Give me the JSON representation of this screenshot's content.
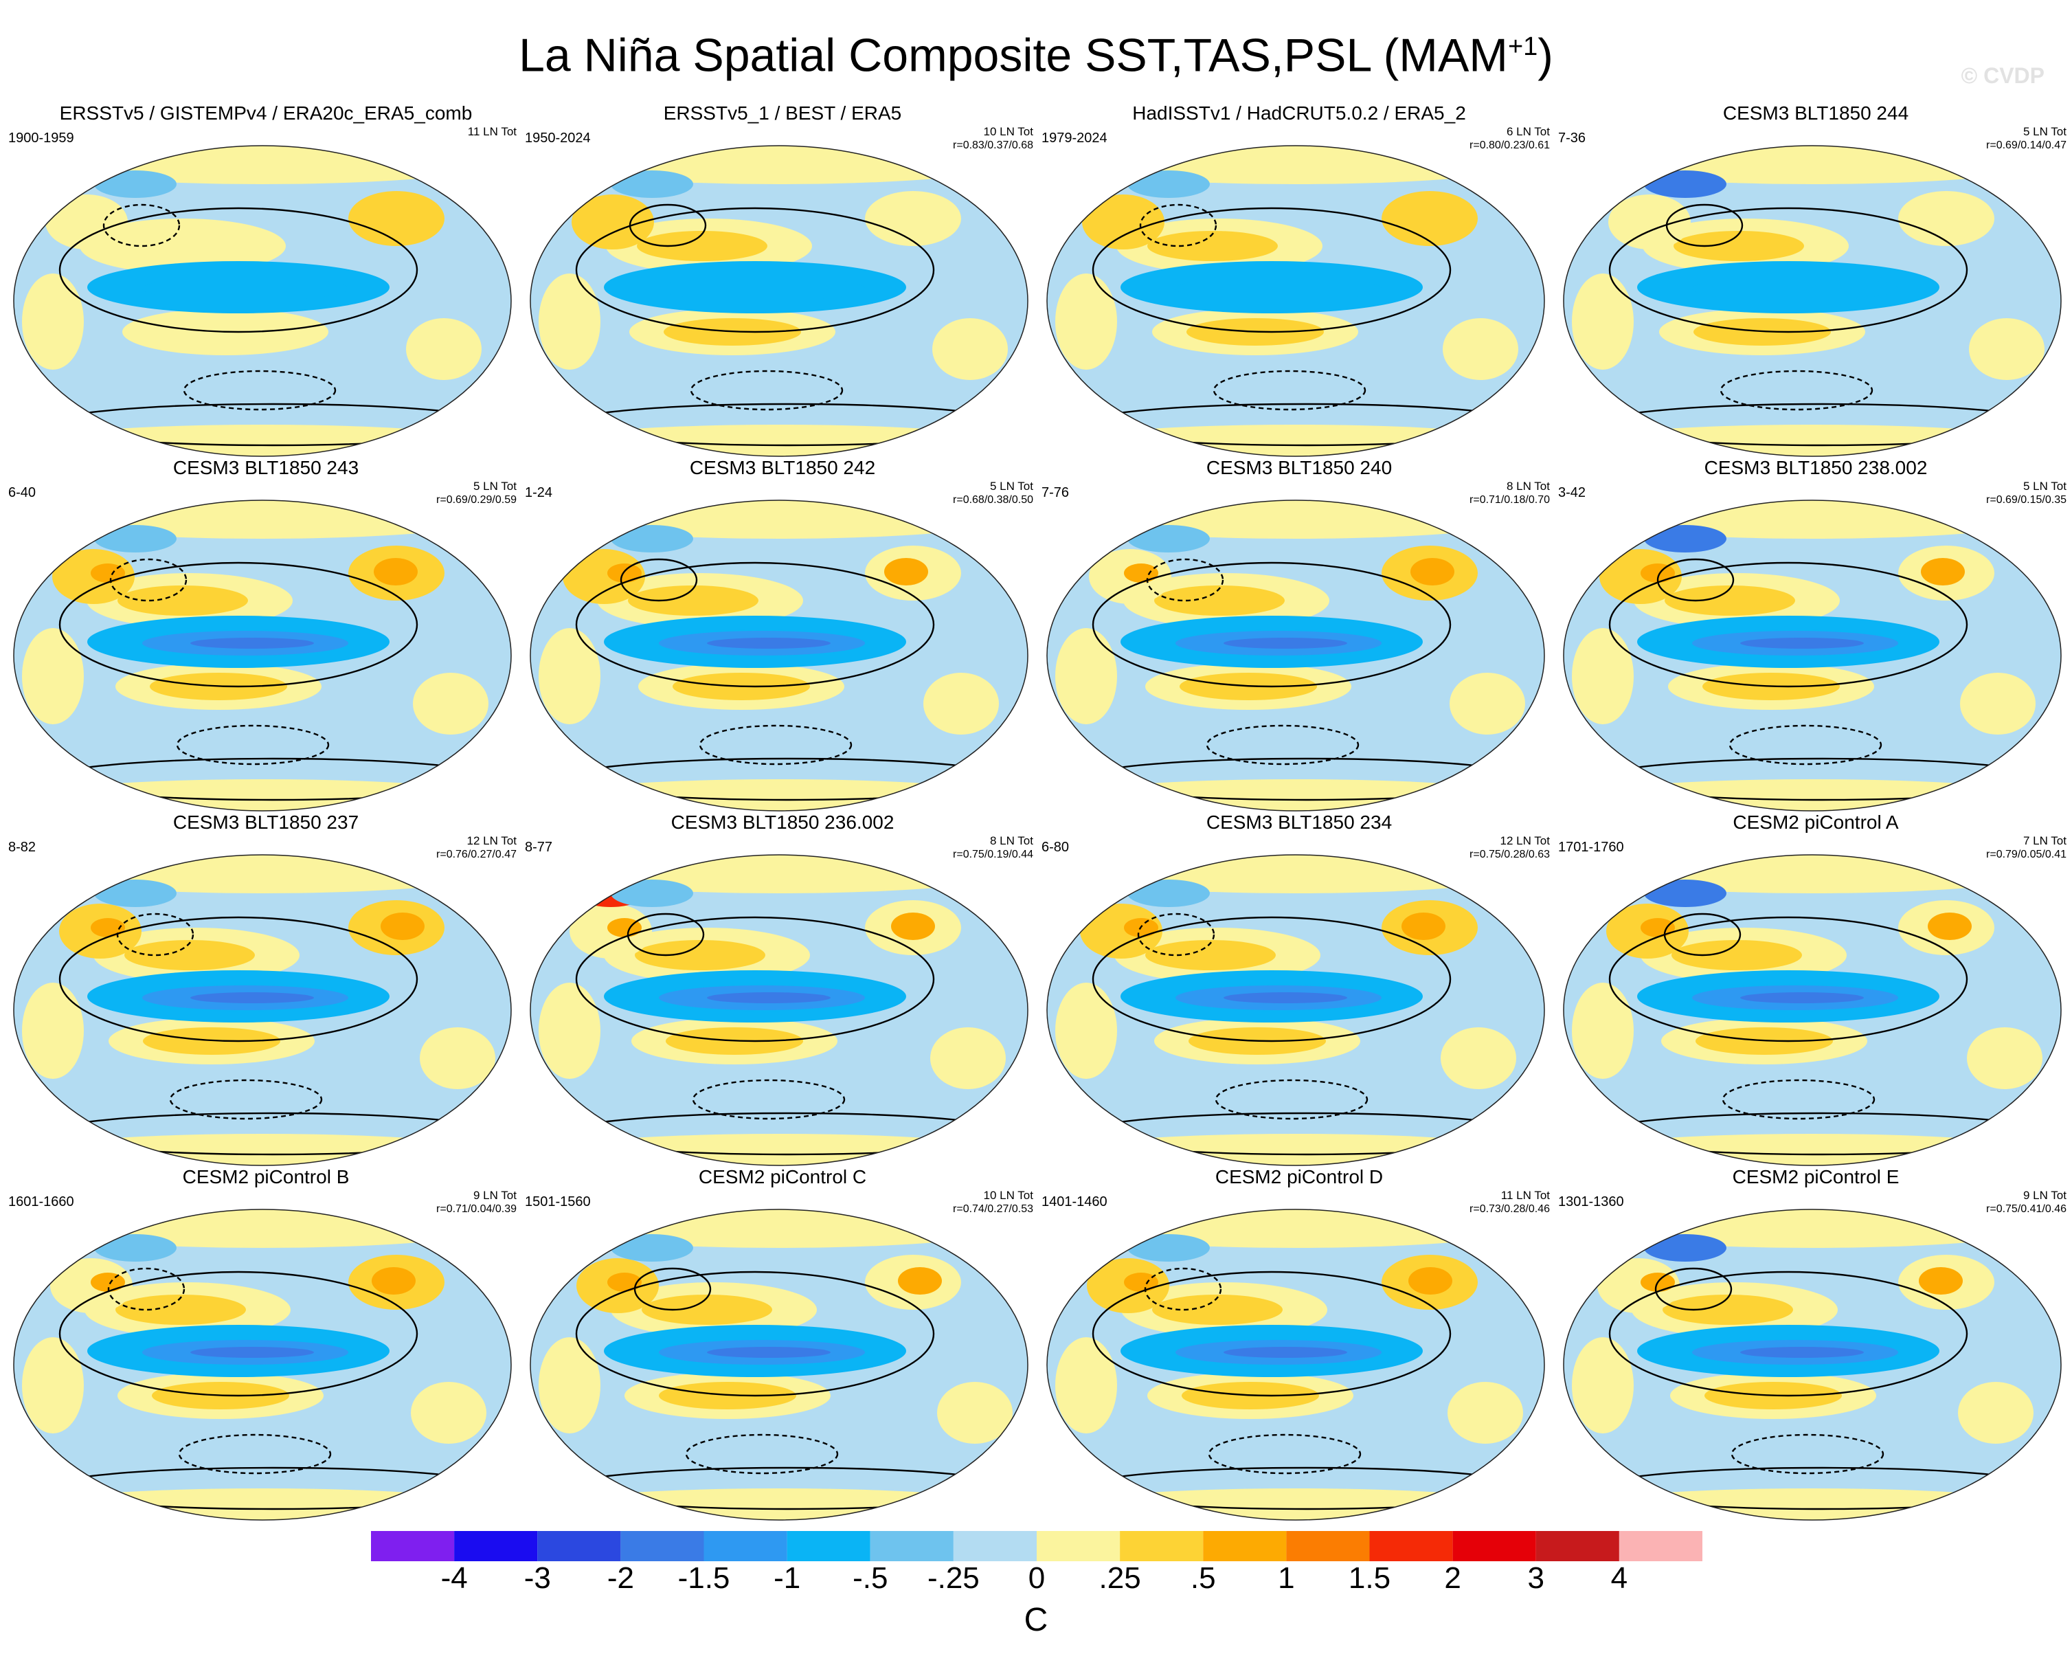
{
  "figure": {
    "title": "La Niña Spatial Composite SST,TAS,PSL (MAM",
    "title_superscript": "+1",
    "title_suffix": ")",
    "watermark": "© CVDP"
  },
  "panels": [
    {
      "title": "ERSSTv5 / GISTEMPv4 / ERA20c_ERA5_comb",
      "years": "1900-1959",
      "count": "11 LN Tot",
      "stats": ""
    },
    {
      "title": "ERSSTv5_1 / BEST / ERA5",
      "years": "1950-2024",
      "count": "10 LN Tot",
      "stats": "r=0.83/0.37/0.68"
    },
    {
      "title": "HadISSTv1 / HadCRUT5.0.2 / ERA5_2",
      "years": "1979-2024",
      "count": "6 LN Tot",
      "stats": "r=0.80/0.23/0.61"
    },
    {
      "title": "CESM3 BLT1850 244",
      "years": "7-36",
      "count": "5 LN Tot",
      "stats": "r=0.69/0.14/0.47"
    },
    {
      "title": "CESM3 BLT1850 243",
      "years": "6-40",
      "count": "5 LN Tot",
      "stats": "r=0.69/0.29/0.59"
    },
    {
      "title": "CESM3 BLT1850 242",
      "years": "1-24",
      "count": "5 LN Tot",
      "stats": "r=0.68/0.38/0.50"
    },
    {
      "title": "CESM3 BLT1850 240",
      "years": "7-76",
      "count": "8 LN Tot",
      "stats": "r=0.71/0.18/0.70"
    },
    {
      "title": "CESM3 BLT1850 238.002",
      "years": "3-42",
      "count": "5 LN Tot",
      "stats": "r=0.69/0.15/0.35"
    },
    {
      "title": "CESM3 BLT1850 237",
      "years": "8-82",
      "count": "12 LN Tot",
      "stats": "r=0.76/0.27/0.47"
    },
    {
      "title": "CESM3 BLT1850 236.002",
      "years": "8-77",
      "count": "8 LN Tot",
      "stats": "r=0.75/0.19/0.44"
    },
    {
      "title": "CESM3 BLT1850 234",
      "years": "6-80",
      "count": "12 LN Tot",
      "stats": "r=0.75/0.28/0.63"
    },
    {
      "title": "CESM2 piControl A",
      "years": "1701-1760",
      "count": "7 LN Tot",
      "stats": "r=0.79/0.05/0.41"
    },
    {
      "title": "CESM2 piControl B",
      "years": "1601-1660",
      "count": "9 LN Tot",
      "stats": "r=0.71/0.04/0.39"
    },
    {
      "title": "CESM2 piControl C",
      "years": "1501-1560",
      "count": "10 LN Tot",
      "stats": "r=0.74/0.27/0.53"
    },
    {
      "title": "CESM2 piControl D",
      "years": "1401-1460",
      "count": "11 LN Tot",
      "stats": "r=0.73/0.28/0.46"
    },
    {
      "title": "CESM2 piControl E",
      "years": "1301-1360",
      "count": "9 LN Tot",
      "stats": "r=0.75/0.41/0.46"
    }
  ],
  "chart_data": {
    "type": "heatmap",
    "projection": "Robinson (global, Pacific-centered)",
    "variables": [
      "SST",
      "TAS",
      "PSL"
    ],
    "season": "MAM+1",
    "composite": "La Niña",
    "colorbar": {
      "ticks": [
        "-4",
        "-3",
        "-2",
        "-1.5",
        "-1",
        "-.5",
        "-.25",
        "0",
        ".25",
        ".5",
        "1",
        "1.5",
        "2",
        "3",
        "4"
      ],
      "colors": [
        "#7f1fef",
        "#1a0cf0",
        "#2b48e0",
        "#3a7be6",
        "#2e99f2",
        "#0ab4f5",
        "#6ec3ee",
        "#b3dcf2",
        "#fbf49e",
        "#fdd335",
        "#fdaa02",
        "#fb7d02",
        "#f52a06",
        "#e50008",
        "#c71a1c",
        "#fbb3b4"
      ],
      "units": "C"
    }
  }
}
